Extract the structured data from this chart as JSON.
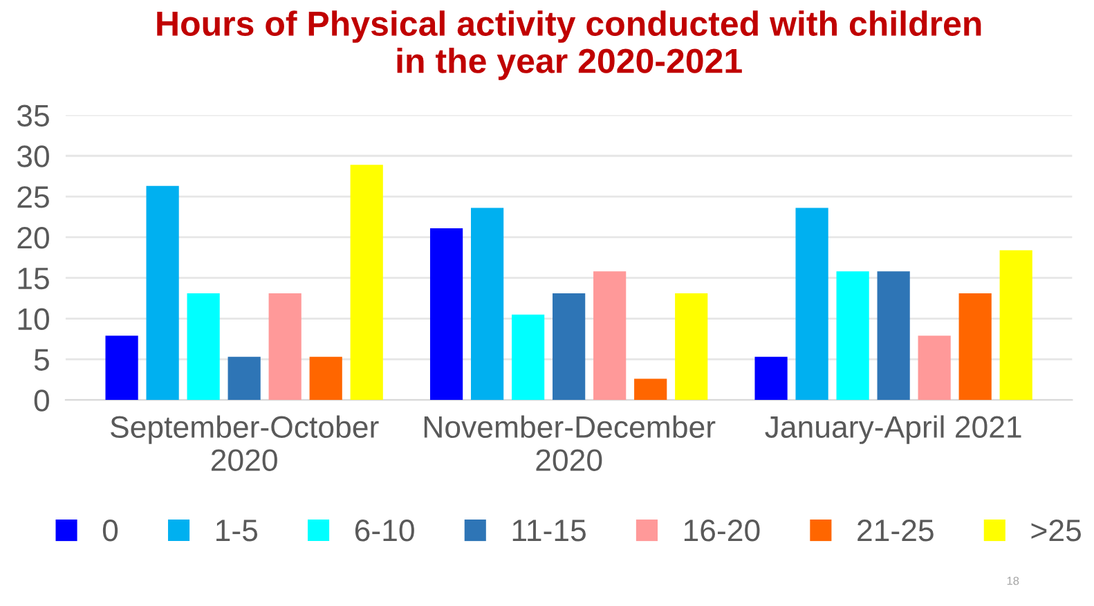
{
  "chart_data": {
    "type": "bar",
    "title": "Hours of Physical activity conducted with children\nin the year 2020-2021",
    "categories": [
      "September-October\n2020",
      "November-December\n2020",
      "January-April 2021"
    ],
    "series": [
      {
        "name": "0",
        "color": "#0000ff",
        "values": [
          7.9,
          21.1,
          5.3
        ]
      },
      {
        "name": "1-5",
        "color": "#00b0f0",
        "values": [
          26.3,
          23.6,
          23.6
        ]
      },
      {
        "name": "6-10",
        "color": "#00ffff",
        "values": [
          13.1,
          10.5,
          15.8
        ]
      },
      {
        "name": "11-15",
        "color": "#2e75b6",
        "values": [
          5.3,
          13.1,
          15.8
        ]
      },
      {
        "name": "16-20",
        "color": "#ff9999",
        "values": [
          13.1,
          15.8,
          7.9
        ]
      },
      {
        "name": "21-25",
        "color": "#ff6600",
        "values": [
          5.3,
          2.6,
          13.1
        ]
      },
      {
        "name": ">25",
        "color": "#ffff00",
        "values": [
          28.9,
          13.1,
          18.4
        ]
      }
    ],
    "ylim": [
      0,
      35
    ],
    "yticks": [
      0,
      5,
      10,
      15,
      20,
      25,
      30,
      35
    ],
    "grid": "y",
    "legend": "bottom",
    "annotations": [
      "18"
    ]
  }
}
